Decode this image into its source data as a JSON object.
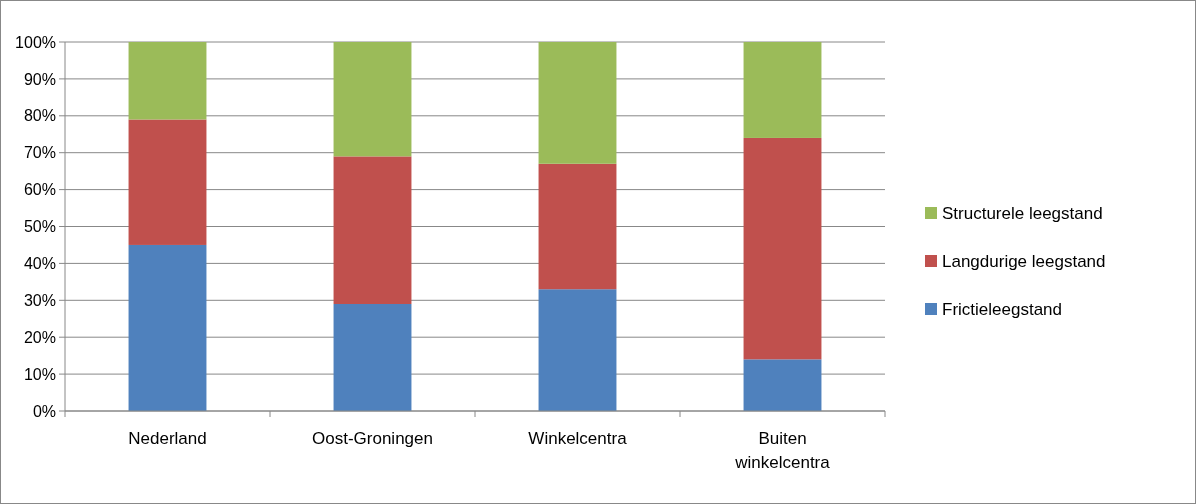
{
  "chart_data": {
    "type": "bar",
    "stacked": true,
    "categories": [
      "Nederland",
      "Oost-Groningen",
      "Winkelcentra",
      "Buiten winkelcentra"
    ],
    "series": [
      {
        "name": "Frictieleegstand",
        "color": "#4f81bd",
        "values": [
          45,
          29,
          33,
          14
        ]
      },
      {
        "name": "Langdurige leegstand",
        "color": "#c0504d",
        "values": [
          34,
          40,
          34,
          60
        ]
      },
      {
        "name": "Structurele leegstand",
        "color": "#9bbb59",
        "values": [
          21,
          31,
          33,
          26
        ]
      }
    ],
    "ylim": [
      0,
      100
    ],
    "yticks": [
      {
        "value": 0,
        "label": "0%"
      },
      {
        "value": 10,
        "label": "10%"
      },
      {
        "value": 20,
        "label": "20%"
      },
      {
        "value": 30,
        "label": "30%"
      },
      {
        "value": 40,
        "label": "40%"
      },
      {
        "value": 50,
        "label": "50%"
      },
      {
        "value": 60,
        "label": "60%"
      },
      {
        "value": 70,
        "label": "70%"
      },
      {
        "value": 80,
        "label": "80%"
      },
      {
        "value": 90,
        "label": "90%"
      },
      {
        "value": 100,
        "label": "100%"
      }
    ],
    "grid": "y",
    "legend": "right"
  }
}
